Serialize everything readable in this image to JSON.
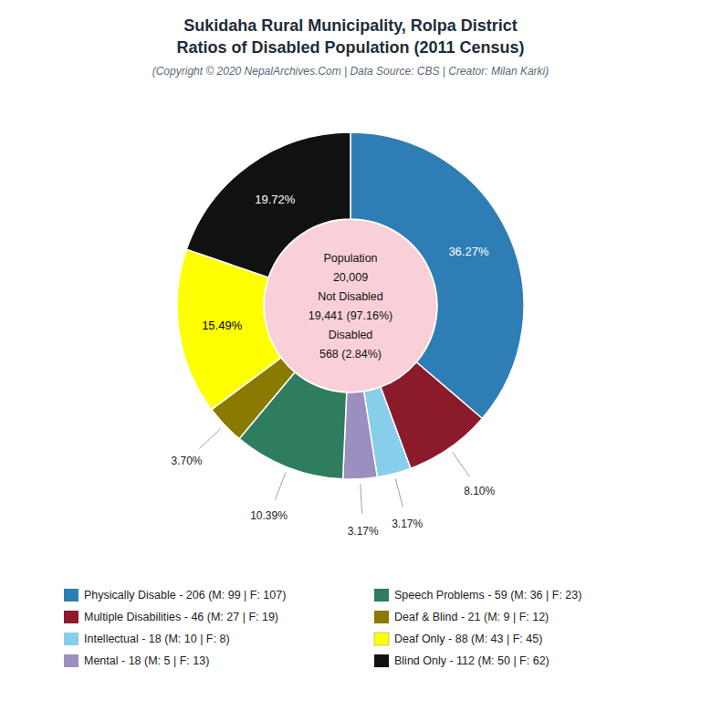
{
  "chart_data": {
    "type": "donut",
    "title": [
      "Sukidaha Rural Municipality, Rolpa District",
      "Ratios of Disabled Population (2011 Census)"
    ],
    "subtitle": "(Copyright © 2020 NepalArchives.Com | Data Source: CBS | Creator: Milan Karki)",
    "categories": [
      "Physically Disable - 206 (M: 99 | F: 107)",
      "Multiple Disabilities - 46 (M: 27 | F: 19)",
      "Intellectual - 18 (M: 10 | F: 8)",
      "Mental - 18 (M: 5 | F: 13)",
      "Speech Problems - 59 (M: 36 | F: 23)",
      "Deaf & Blind - 21 (M: 9 | F: 12)",
      "Deaf Only - 88 (M: 43 | F: 45)",
      "Blind Only - 112 (M: 50 | F: 62)"
    ],
    "values": [
      36.27,
      8.1,
      3.17,
      3.17,
      10.39,
      3.7,
      15.49,
      19.72
    ],
    "value_labels": [
      "36.27%",
      "8.10%",
      "3.17%",
      "3.17%",
      "10.39%",
      "3.70%",
      "15.49%",
      "19.72%"
    ],
    "colors": [
      "#2e7eb5",
      "#8b1a2a",
      "#87ceeb",
      "#9b8fc0",
      "#2e7d5e",
      "#8b7a00",
      "#ffff00",
      "#111111"
    ],
    "data_labels": true,
    "legend": "bottom",
    "annotations": [
      "Population",
      "20,009",
      "Not Disabled",
      "19,441 (97.16%)",
      "Disabled",
      "568 (2.84%)"
    ]
  }
}
